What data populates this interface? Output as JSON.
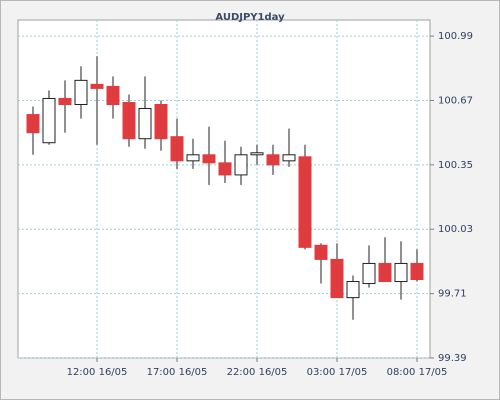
{
  "chart_data": {
    "type": "candlestick",
    "title": "AUDJPY1day",
    "categories": [
      null,
      null,
      null,
      null,
      "12:00 16/05",
      null,
      null,
      null,
      null,
      "17:00 16/05",
      null,
      null,
      null,
      null,
      "22:00 16/05",
      null,
      null,
      null,
      null,
      "03:00 17/05",
      null,
      null,
      null,
      null,
      "08:00 17/05"
    ],
    "series": [
      {
        "open": [
          100.6,
          100.46,
          100.68,
          100.65,
          100.75,
          100.74,
          100.66,
          100.48,
          100.65,
          100.49,
          100.37,
          100.4,
          100.36,
          100.3,
          100.4,
          100.4,
          100.37,
          100.39,
          99.95,
          99.88,
          99.69,
          99.76,
          99.86,
          99.77,
          99.86
        ],
        "high": [
          100.64,
          100.72,
          100.77,
          100.84,
          100.89,
          100.79,
          100.7,
          100.79,
          100.67,
          100.58,
          100.48,
          100.54,
          100.47,
          100.44,
          100.45,
          100.45,
          100.53,
          100.45,
          99.96,
          99.96,
          99.8,
          99.95,
          99.99,
          99.97,
          99.93
        ],
        "low": [
          100.4,
          100.45,
          100.51,
          100.58,
          100.45,
          100.58,
          100.44,
          100.43,
          100.42,
          100.33,
          100.33,
          100.25,
          100.26,
          100.25,
          100.35,
          100.3,
          100.34,
          99.93,
          99.76,
          99.69,
          99.58,
          99.74,
          99.77,
          99.68,
          99.77
        ],
        "close": [
          100.51,
          100.68,
          100.65,
          100.77,
          100.73,
          100.65,
          100.48,
          100.63,
          100.48,
          100.37,
          100.4,
          100.36,
          100.3,
          100.4,
          100.41,
          100.35,
          100.4,
          99.94,
          99.88,
          99.69,
          99.77,
          99.86,
          99.77,
          99.86,
          99.78
        ]
      }
    ],
    "up_color": "#ffffff",
    "down_color": "#e03c3f",
    "ylim": [
      99.39,
      101.07
    ],
    "yticks": [
      99.39,
      99.71,
      100.03,
      100.35,
      100.67,
      100.99
    ],
    "grid": true
  }
}
